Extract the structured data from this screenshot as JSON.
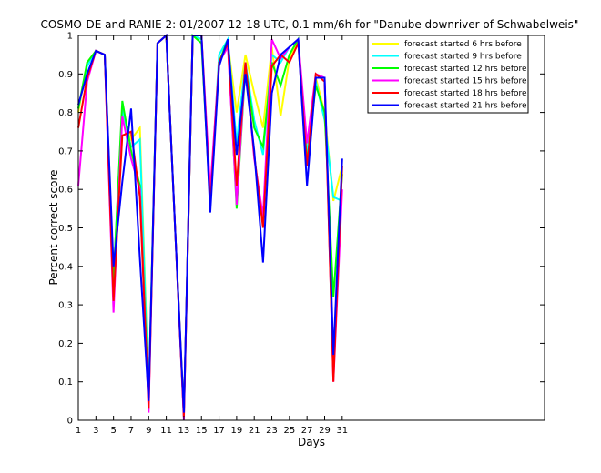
{
  "chart_data": {
    "type": "line",
    "title": "COSMO-DE and RANIE 2: 01/2007 12-18 UTC, 0.1 mm/6h for \"Danube downriver of Schwabelweis\"",
    "xlabel": "Days",
    "ylabel": "Percent correct score",
    "xlim": [
      1,
      54
    ],
    "ylim": [
      0,
      1
    ],
    "xticks": [
      1,
      3,
      5,
      7,
      9,
      11,
      13,
      15,
      17,
      19,
      21,
      23,
      25,
      27,
      29,
      31
    ],
    "yticks": [
      0,
      0.1,
      0.2,
      0.3,
      0.4,
      0.5,
      0.6,
      0.7,
      0.8,
      0.9,
      1
    ],
    "ytick_labels": [
      "0",
      "0.1",
      "0.2",
      "0.3",
      "0.4",
      "0.5",
      "0.6",
      "0.7",
      "0.8",
      "0.9",
      "1"
    ],
    "grid": false,
    "legend_position": "top-right",
    "x": [
      1,
      2,
      3,
      4,
      5,
      6,
      7,
      8,
      9,
      10,
      11,
      12,
      13,
      14,
      15,
      16,
      17,
      18,
      19,
      20,
      21,
      22,
      23,
      24,
      25,
      26,
      27,
      28,
      29,
      30,
      31
    ],
    "series": [
      {
        "name": "forecast started 6 hrs before",
        "color": "#ffff00",
        "values": [
          0.8,
          0.93,
          0.96,
          0.95,
          0.37,
          0.8,
          0.73,
          0.76,
          0.07,
          0.98,
          1.0,
          0.5,
          0.01,
          1.0,
          0.99,
          0.57,
          0.93,
          0.98,
          0.8,
          0.95,
          0.85,
          0.76,
          0.97,
          0.79,
          0.94,
          0.99,
          0.69,
          0.89,
          0.8,
          0.57,
          0.66
        ]
      },
      {
        "name": "forecast started 9 hrs before",
        "color": "#00ffff",
        "values": [
          0.81,
          0.92,
          0.96,
          0.95,
          0.37,
          0.81,
          0.71,
          0.73,
          0.06,
          0.98,
          1.0,
          0.5,
          0.01,
          1.0,
          0.99,
          0.57,
          0.95,
          0.99,
          0.72,
          0.93,
          0.78,
          0.69,
          0.95,
          0.93,
          0.97,
          0.99,
          0.69,
          0.88,
          0.78,
          0.58,
          0.57
        ]
      },
      {
        "name": "forecast started 12 hrs before",
        "color": "#00ff00",
        "values": [
          0.81,
          0.93,
          0.96,
          0.95,
          0.36,
          0.83,
          0.7,
          0.61,
          0.05,
          0.98,
          1.0,
          0.5,
          0.01,
          1.0,
          0.98,
          0.56,
          0.93,
          0.99,
          0.55,
          0.92,
          0.76,
          0.71,
          0.93,
          0.87,
          0.95,
          0.99,
          0.67,
          0.87,
          0.8,
          0.32,
          0.64
        ]
      },
      {
        "name": "forecast started 15 hrs before",
        "color": "#ff00ff",
        "values": [
          0.61,
          0.88,
          0.96,
          0.95,
          0.28,
          0.79,
          0.68,
          0.6,
          0.02,
          0.98,
          1.0,
          0.5,
          0.0,
          1.0,
          1.0,
          0.6,
          0.93,
          0.97,
          0.56,
          0.93,
          0.68,
          0.53,
          0.99,
          0.94,
          0.97,
          0.99,
          0.72,
          0.9,
          0.89,
          0.1,
          0.6
        ]
      },
      {
        "name": "forecast started 18 hrs before",
        "color": "#ff0000",
        "values": [
          0.76,
          0.89,
          0.96,
          0.95,
          0.31,
          0.74,
          0.75,
          0.58,
          0.03,
          0.98,
          1.0,
          0.5,
          0.01,
          1.0,
          1.0,
          0.56,
          0.93,
          0.98,
          0.61,
          0.93,
          0.69,
          0.5,
          0.92,
          0.95,
          0.93,
          0.98,
          0.66,
          0.9,
          0.88,
          0.1,
          0.66
        ]
      },
      {
        "name": "forecast started 21 hrs before",
        "color": "#0000ff",
        "values": [
          0.82,
          0.9,
          0.96,
          0.95,
          0.4,
          0.62,
          0.81,
          0.42,
          0.05,
          0.98,
          1.0,
          0.5,
          0.02,
          1.0,
          1.0,
          0.54,
          0.92,
          0.99,
          0.69,
          0.9,
          0.7,
          0.41,
          0.85,
          0.95,
          0.97,
          0.99,
          0.61,
          0.89,
          0.89,
          0.17,
          0.68
        ]
      }
    ]
  }
}
